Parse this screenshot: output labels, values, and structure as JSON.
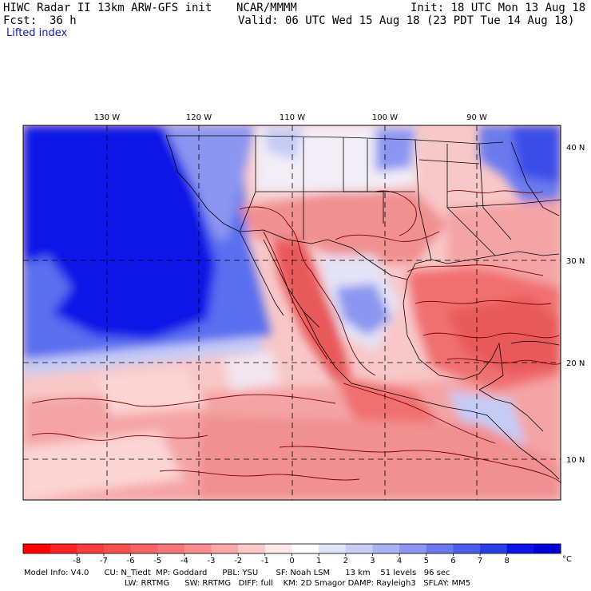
{
  "header": {
    "model_title": "HIWC Radar II 13km ARW-GFS init",
    "org": "NCAR/MMMM",
    "init": "Init: 18 UTC Mon 13 Aug 18",
    "fcst_label": "Fcst:",
    "fcst_value": "36 h",
    "valid": "Valid: 06 UTC Wed 15 Aug 18 (23 PDT Tue 14 Aug 18)",
    "field": "Lifted index"
  },
  "map": {
    "lon_labels": [
      "130 W",
      "120 W",
      "110 W",
      "100 W",
      "90 W"
    ],
    "lat_labels": [
      "40 N",
      "30 N",
      "20 N",
      "10 N"
    ],
    "colors": {
      "ocean_stable": "#0a14e6",
      "stable_mid": "#5a6ef0",
      "stable_light": "#c4ccf6",
      "neutral": "#f2eef6",
      "unstable_light": "#f8c8c8",
      "unstable_mid": "#f09090",
      "unstable_strong": "#e85a5a",
      "contour": "#7a0000",
      "borders": "#000000"
    }
  },
  "colorbar": {
    "ticks": [
      "-8",
      "-7",
      "-6",
      "-5",
      "-4",
      "-3",
      "-2",
      "-1",
      "0",
      "1",
      "2",
      "3",
      "4",
      "5",
      "6",
      "7",
      "8"
    ],
    "unit": "°C",
    "colors": [
      "#ff0000",
      "#ff2424",
      "#fa3c3c",
      "#f55050",
      "#f56464",
      "#f57878",
      "#f88c8c",
      "#faa8a8",
      "#fcc8c8",
      "#ffe8e8",
      "#ffffff",
      "#e0e4fa",
      "#c6cdf7",
      "#aab2f4",
      "#8a96f0",
      "#6a7aed",
      "#4a5eea",
      "#2a3ee6",
      "#0a14e6",
      "#0000d6"
    ]
  },
  "footer": {
    "line1": "Model Info: V4.0      CU: N_Tiedt  MP: Goddard      PBL: YSU       SF: Noah LSM      13 km    51 levels   96 sec",
    "line2": "LW: RRTMG      SW: RRTMG   DIFF: full    KM: 2D Smagor DAMP: Rayleigh3   SFLAY: MM5"
  }
}
